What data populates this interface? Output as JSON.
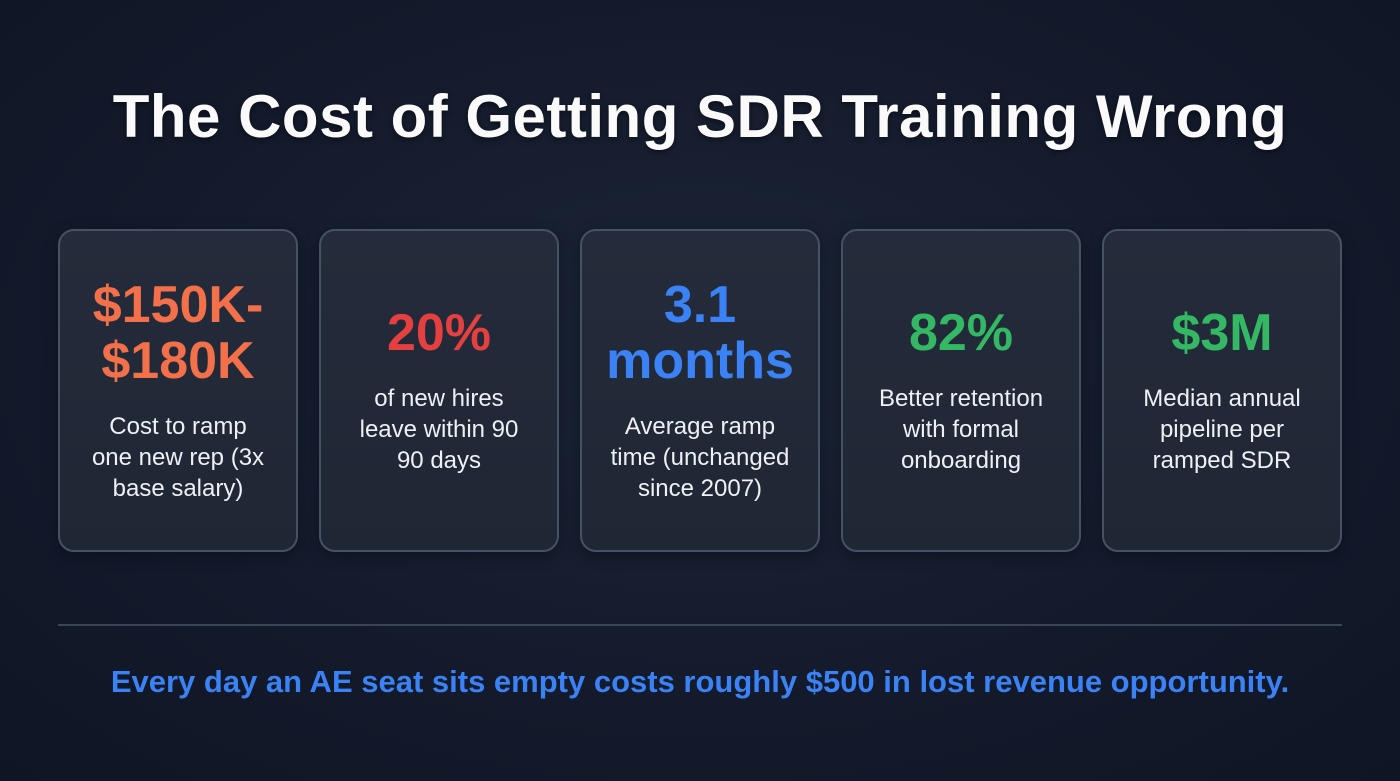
{
  "title": "The Cost of Getting SDR Training Wrong",
  "colors": {
    "orange": "#f4704a",
    "red": "#e5403f",
    "blue": "#3b82f6",
    "green": "#34b864"
  },
  "cards": [
    {
      "value": "$150K-\n$180K",
      "description": "Cost to ramp\none new rep (3x\nbase salary)",
      "color": "#f4704a"
    },
    {
      "value": "20%",
      "description": "of new hires\nleave within 90\n90 days",
      "color": "#e5403f"
    },
    {
      "value": "3.1\nmonths",
      "description": "Average ramp\ntime (unchanged\nsince 2007)",
      "color": "#3b82f6"
    },
    {
      "value": "82%",
      "description": "Better retention\nwith formal\nonboarding",
      "color": "#34b864"
    },
    {
      "value": "$3M",
      "description": "Median annual\npipeline per\nramped SDR",
      "color": "#34b864"
    }
  ],
  "footer": "Every day an AE seat sits empty costs roughly $500 in lost revenue opportunity."
}
